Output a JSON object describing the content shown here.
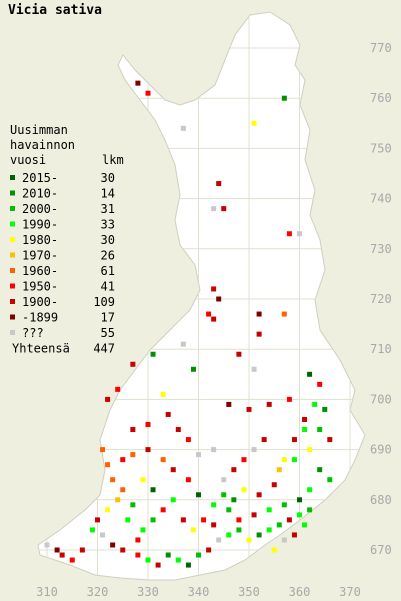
{
  "title": "Vicia sativa",
  "legend": {
    "heading": [
      "Uusimman",
      "havainnon",
      "vuosi"
    ],
    "count_heading": "lkm",
    "entries": [
      {
        "label": "2015-",
        "count": 30,
        "color": "#006400"
      },
      {
        "label": "2010-",
        "count": 14,
        "color": "#009000"
      },
      {
        "label": "2000-",
        "count": 31,
        "color": "#00c000"
      },
      {
        "label": "1990-",
        "count": 33,
        "color": "#00ff00"
      },
      {
        "label": "1980-",
        "count": 30,
        "color": "#ffff00"
      },
      {
        "label": "1970-",
        "count": 26,
        "color": "#ffc000"
      },
      {
        "label": "1960-",
        "count": 61,
        "color": "#ff6000"
      },
      {
        "label": "1950-",
        "count": 41,
        "color": "#ff0000"
      },
      {
        "label": "1900-",
        "count": 109,
        "color": "#c80000"
      },
      {
        "label": "-1899",
        "count": 17,
        "color": "#800000"
      },
      {
        "label": "???",
        "count": 55,
        "color": "#c8c8c8"
      }
    ],
    "total_label": "Yhteensä",
    "total": 447
  },
  "map": {
    "xticks": [
      310,
      320,
      330,
      340,
      350,
      360,
      370
    ],
    "yticks": [
      670,
      680,
      690,
      700,
      710,
      720,
      730,
      740,
      750,
      760,
      770
    ],
    "squares": [
      [
        328,
        763,
        9
      ],
      [
        330,
        761,
        7
      ],
      [
        357,
        760,
        1
      ],
      [
        351,
        755,
        4
      ],
      [
        337,
        754,
        10
      ],
      [
        344,
        743,
        8
      ],
      [
        343,
        738,
        10
      ],
      [
        345,
        738,
        8
      ],
      [
        358,
        733,
        7
      ],
      [
        360,
        733,
        10
      ],
      [
        343,
        722,
        8
      ],
      [
        344,
        720,
        9
      ],
      [
        343,
        716,
        8
      ],
      [
        342,
        717,
        7
      ],
      [
        352,
        717,
        9
      ],
      [
        357,
        717,
        6
      ],
      [
        352,
        713,
        8
      ],
      [
        337,
        711,
        10
      ],
      [
        331,
        709,
        1
      ],
      [
        327,
        707,
        8
      ],
      [
        339,
        706,
        1
      ],
      [
        348,
        709,
        8
      ],
      [
        351,
        706,
        10
      ],
      [
        362,
        705,
        0
      ],
      [
        364,
        703,
        7
      ],
      [
        358,
        700,
        7
      ],
      [
        354,
        699,
        8
      ],
      [
        350,
        698,
        8
      ],
      [
        346,
        699,
        9
      ],
      [
        333,
        701,
        4
      ],
      [
        324,
        702,
        7
      ],
      [
        322,
        700,
        8
      ],
      [
        363,
        699,
        3
      ],
      [
        365,
        698,
        1
      ],
      [
        361,
        696,
        8
      ],
      [
        364,
        694,
        2
      ],
      [
        366,
        692,
        8
      ],
      [
        362,
        690,
        4
      ],
      [
        359,
        688,
        3
      ],
      [
        356,
        686,
        5
      ],
      [
        364,
        686,
        1
      ],
      [
        366,
        684,
        2
      ],
      [
        362,
        682,
        3
      ],
      [
        360,
        680,
        0
      ],
      [
        357,
        679,
        2
      ],
      [
        354,
        678,
        3
      ],
      [
        351,
        677,
        8
      ],
      [
        348,
        676,
        7
      ],
      [
        346,
        678,
        2
      ],
      [
        343,
        679,
        3
      ],
      [
        340,
        681,
        0
      ],
      [
        338,
        684,
        7
      ],
      [
        335,
        686,
        8
      ],
      [
        333,
        688,
        6
      ],
      [
        330,
        690,
        8
      ],
      [
        327,
        689,
        6
      ],
      [
        325,
        688,
        7
      ],
      [
        322,
        687,
        6
      ],
      [
        321,
        690,
        6
      ],
      [
        323,
        684,
        6
      ],
      [
        325,
        682,
        6
      ],
      [
        324,
        680,
        5
      ],
      [
        322,
        678,
        4
      ],
      [
        320,
        676,
        8
      ],
      [
        319,
        674,
        3
      ],
      [
        321,
        673,
        10
      ],
      [
        323,
        671,
        9
      ],
      [
        325,
        670,
        8
      ],
      [
        328,
        669,
        7
      ],
      [
        330,
        668,
        3
      ],
      [
        332,
        667,
        8
      ],
      [
        334,
        669,
        1
      ],
      [
        336,
        668,
        3
      ],
      [
        338,
        667,
        0
      ],
      [
        340,
        669,
        2
      ],
      [
        342,
        670,
        8
      ],
      [
        344,
        672,
        10
      ],
      [
        346,
        673,
        3
      ],
      [
        348,
        674,
        2
      ],
      [
        350,
        672,
        4
      ],
      [
        352,
        673,
        1
      ],
      [
        354,
        674,
        3
      ],
      [
        356,
        675,
        2
      ],
      [
        358,
        676,
        8
      ],
      [
        360,
        677,
        3
      ],
      [
        362,
        678,
        2
      ],
      [
        313,
        669,
        8
      ],
      [
        312,
        670,
        9
      ],
      [
        315,
        668,
        7
      ],
      [
        317,
        670,
        8
      ],
      [
        310,
        671,
        10
      ],
      [
        329,
        674,
        3
      ],
      [
        331,
        676,
        2
      ],
      [
        333,
        678,
        7
      ],
      [
        335,
        680,
        3
      ],
      [
        337,
        676,
        8
      ],
      [
        339,
        674,
        4
      ],
      [
        341,
        676,
        7
      ],
      [
        343,
        675,
        8
      ],
      [
        345,
        684,
        10
      ],
      [
        347,
        686,
        8
      ],
      [
        349,
        688,
        7
      ],
      [
        351,
        690,
        10
      ],
      [
        353,
        692,
        8
      ],
      [
        343,
        690,
        10
      ],
      [
        340,
        689,
        10
      ],
      [
        338,
        692,
        7
      ],
      [
        336,
        694,
        8
      ],
      [
        334,
        697,
        8
      ],
      [
        330,
        695,
        7
      ],
      [
        327,
        694,
        8
      ],
      [
        329,
        684,
        4
      ],
      [
        331,
        682,
        0
      ],
      [
        327,
        679,
        2
      ],
      [
        326,
        676,
        3
      ],
      [
        328,
        672,
        7
      ],
      [
        355,
        670,
        4
      ],
      [
        357,
        672,
        10
      ],
      [
        359,
        673,
        8
      ],
      [
        361,
        675,
        3
      ],
      [
        345,
        681,
        2
      ],
      [
        347,
        680,
        1
      ],
      [
        349,
        682,
        4
      ],
      [
        352,
        681,
        8
      ],
      [
        355,
        683,
        8
      ],
      [
        357,
        688,
        4
      ],
      [
        359,
        692,
        8
      ],
      [
        361,
        694,
        3
      ]
    ]
  }
}
